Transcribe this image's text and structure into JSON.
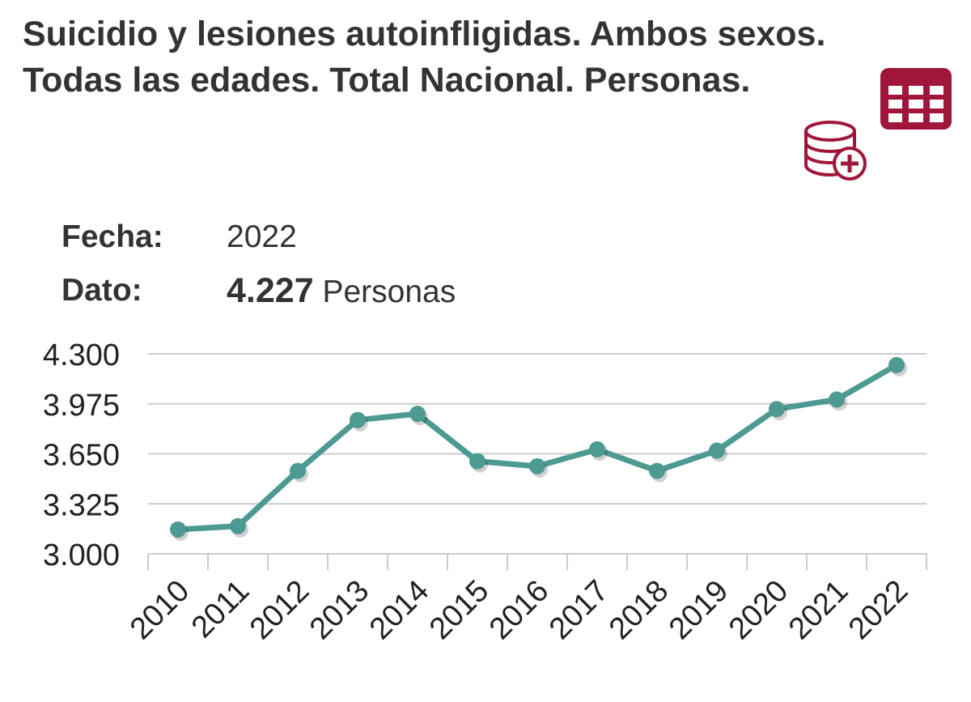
{
  "title": {
    "line1": "Suicidio y lesiones autoinfligidas. Ambos sexos.",
    "line2": "Todas las edades. Total Nacional. Personas."
  },
  "icons": {
    "table": "table-icon",
    "database_add": "database-add-icon",
    "accent_color": "#a0163a"
  },
  "info": {
    "fecha_label": "Fecha:",
    "fecha_value": "2022",
    "dato_label": "Dato:",
    "dato_value": "4.227",
    "dato_unit": "Personas"
  },
  "chart_data": {
    "type": "line",
    "categories": [
      "2010",
      "2011",
      "2012",
      "2013",
      "2014",
      "2015",
      "2016",
      "2017",
      "2018",
      "2019",
      "2020",
      "2021",
      "2022"
    ],
    "series": [
      {
        "values": [
          3158,
          3180,
          3539,
          3870,
          3910,
          3602,
          3569,
          3679,
          3539,
          3671,
          3941,
          4003,
          4227
        ]
      }
    ],
    "y_ticks": [
      3000,
      3325,
      3650,
      3975,
      4300
    ],
    "y_tick_labels": [
      "3.000",
      "3.325",
      "3.650",
      "3.975",
      "4.300"
    ],
    "ylim": [
      3000,
      4300
    ],
    "grid": true,
    "line_color": "#4d9a92"
  }
}
